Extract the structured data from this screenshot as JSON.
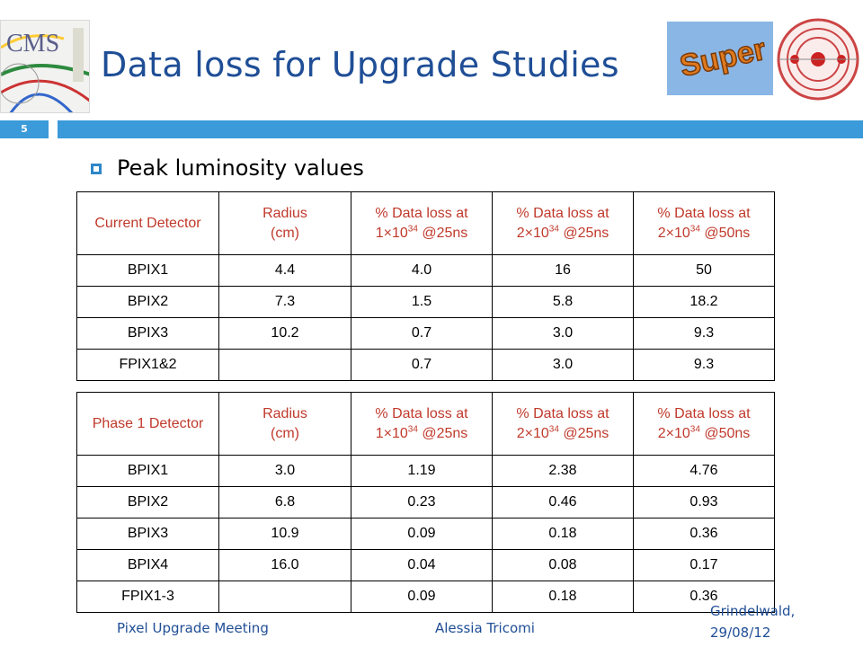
{
  "slide": {
    "page_number": "5",
    "title": "Data loss for Upgrade Studies",
    "bullet": "Peak luminosity values"
  },
  "logos": {
    "left": "CMS",
    "right_badge": "Super"
  },
  "table1": {
    "headers": [
      {
        "plain": "Current Detector"
      },
      {
        "line1": "Radius",
        "line2": "(cm)"
      },
      {
        "line1": "% Data loss at",
        "base": "1×10",
        "exp": "34",
        "tail": " @25ns"
      },
      {
        "line1": "% Data loss at",
        "base": "2×10",
        "exp": "34",
        "tail": " @25ns"
      },
      {
        "line1": "% Data loss at",
        "base": "2×10",
        "exp": "34",
        "tail": " @50ns"
      }
    ],
    "rows": [
      [
        "BPIX1",
        "4.4",
        "4.0",
        "16",
        "50"
      ],
      [
        "BPIX2",
        "7.3",
        "1.5",
        "5.8",
        "18.2"
      ],
      [
        "BPIX3",
        "10.2",
        "0.7",
        "3.0",
        "9.3"
      ],
      [
        "FPIX1&2",
        "",
        "0.7",
        "3.0",
        "9.3"
      ]
    ]
  },
  "table2": {
    "headers": [
      {
        "plain": "Phase 1 Detector"
      },
      {
        "line1": "Radius",
        "line2": "(cm)"
      },
      {
        "line1": "% Data loss at",
        "base": "1×10",
        "exp": "34",
        "tail": " @25ns"
      },
      {
        "line1": "% Data loss at",
        "base": "2×10",
        "exp": "34",
        "tail": " @25ns"
      },
      {
        "line1": "% Data loss at",
        "base": "2×10",
        "exp": "34",
        "tail": " @50ns"
      }
    ],
    "rows": [
      [
        "BPIX1",
        "3.0",
        "1.19",
        "2.38",
        "4.76"
      ],
      [
        "BPIX2",
        "6.8",
        "0.23",
        "0.46",
        "0.93"
      ],
      [
        "BPIX3",
        "10.9",
        "0.09",
        "0.18",
        "0.36"
      ],
      [
        "BPIX4",
        "16.0",
        "0.04",
        "0.08",
        "0.17"
      ],
      [
        "FPIX1-3",
        "",
        "0.09",
        "0.18",
        "0.36"
      ]
    ]
  },
  "footer": {
    "left": "Pixel Upgrade Meeting",
    "middle": "Alessia Tricomi",
    "right_line1": "Grindelwald,",
    "right_line2": "29/08/12"
  },
  "colors": {
    "accent_blue": "#3b9ad9",
    "title_blue": "#1f4e96",
    "header_red": "#c0392b"
  }
}
